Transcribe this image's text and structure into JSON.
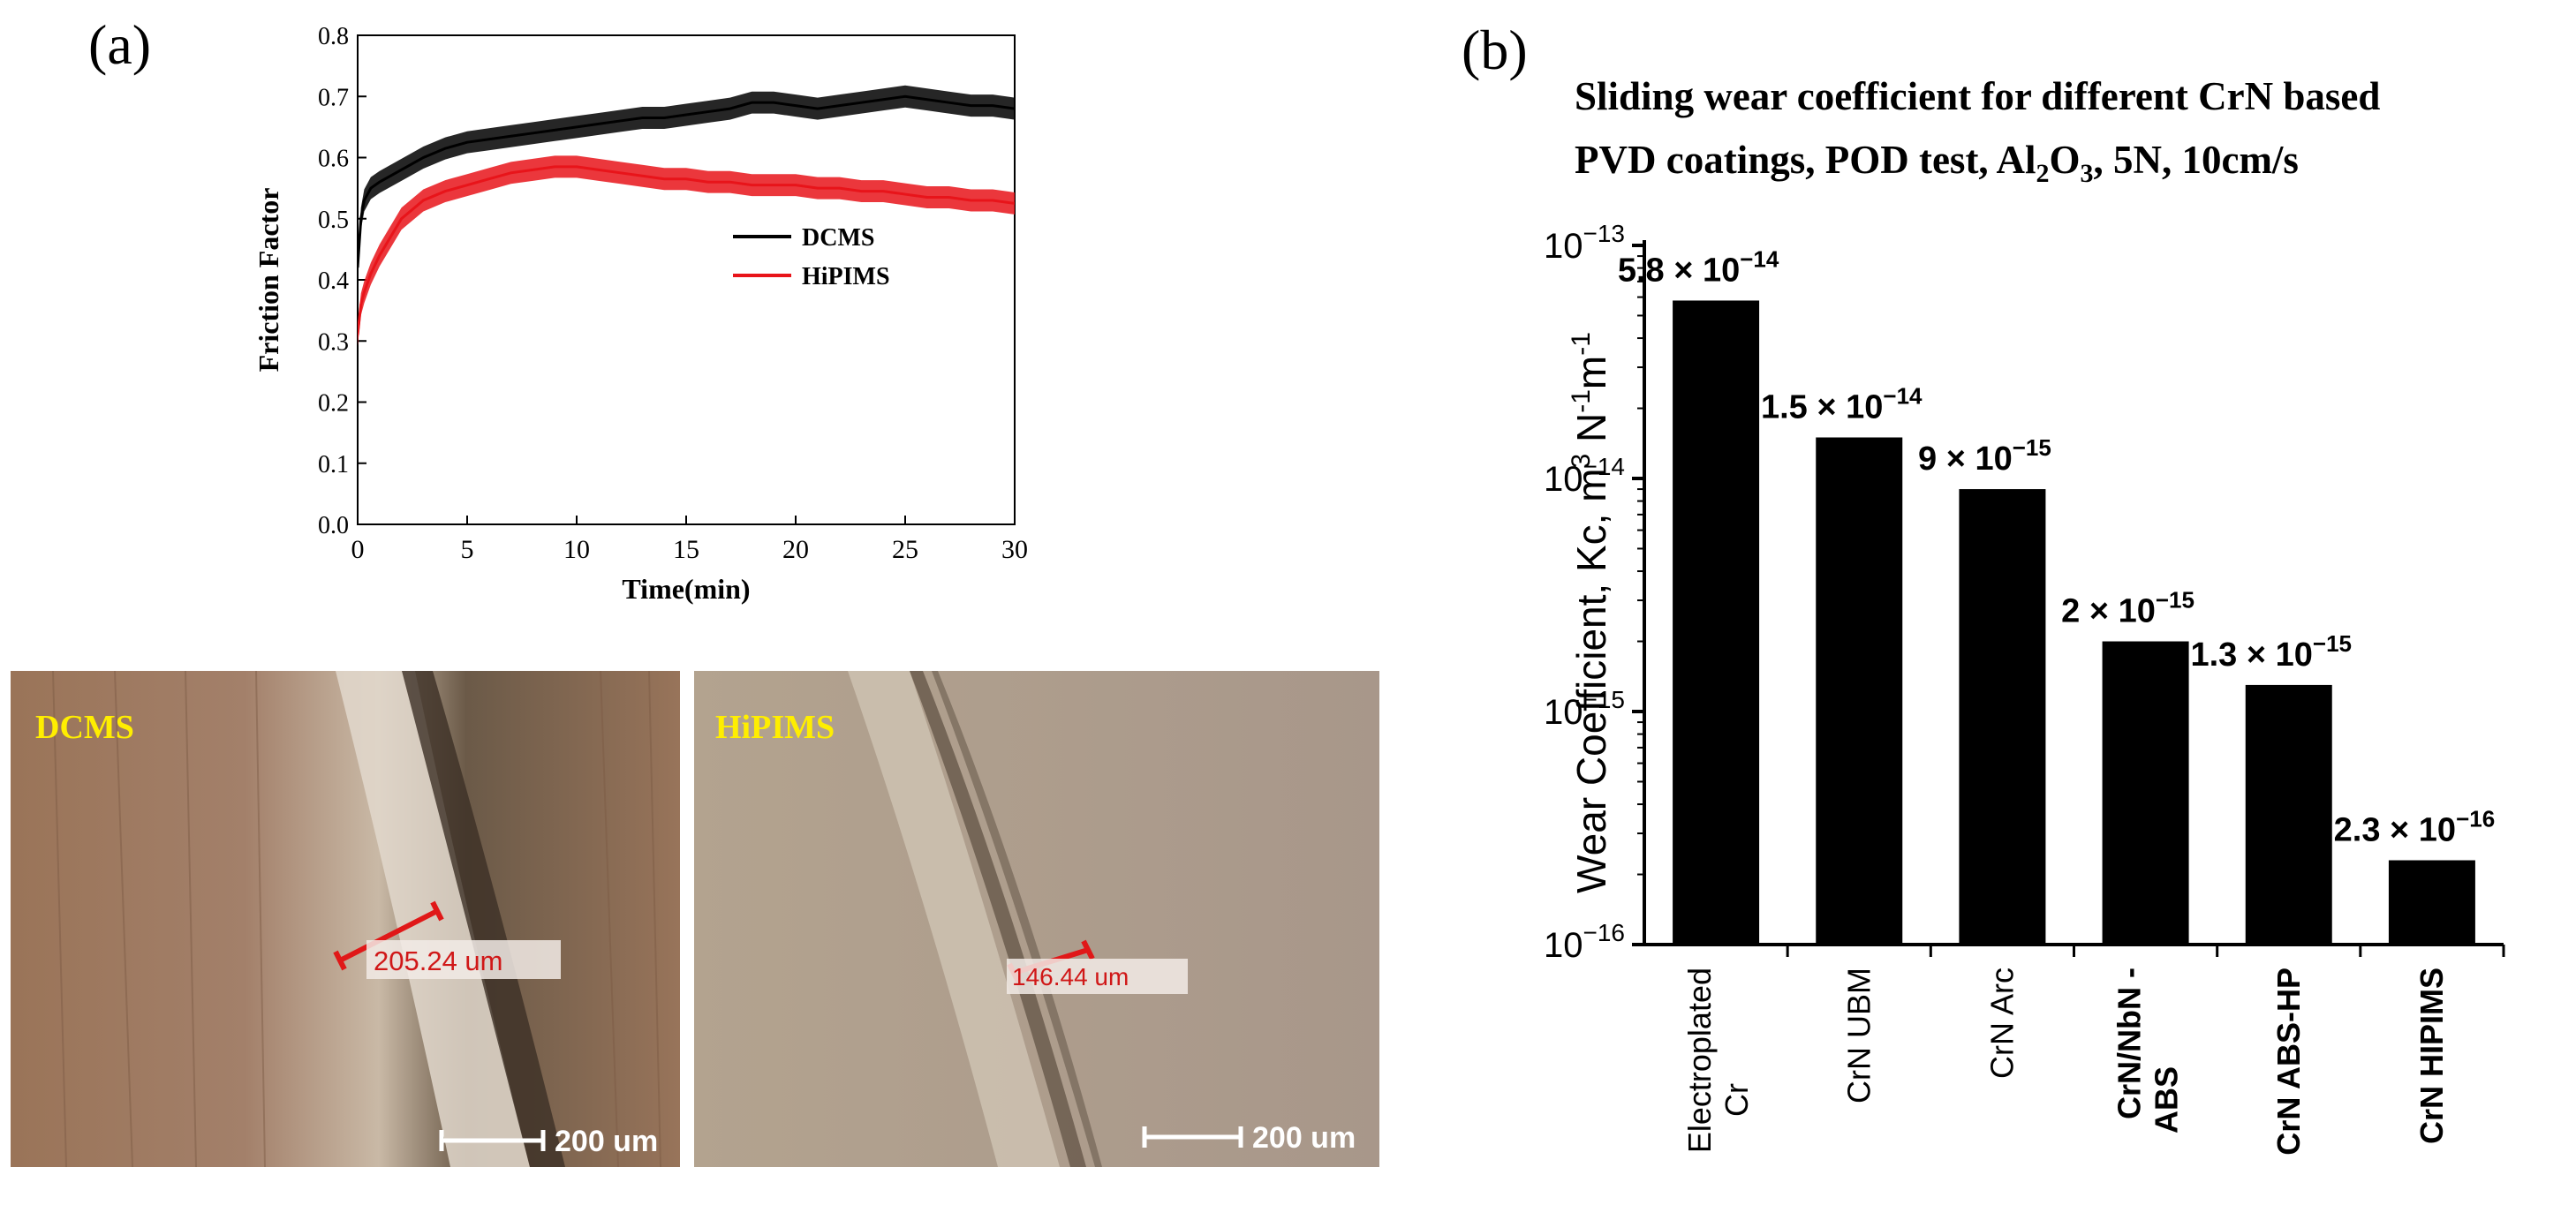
{
  "panel_a": {
    "label": "(a)",
    "chart_data": {
      "type": "line",
      "title": "",
      "xlabel": "Time(min)",
      "ylabel": "Friction Factor",
      "xlim": [
        0,
        30
      ],
      "ylim": [
        0.0,
        0.8
      ],
      "x_ticks": [
        0,
        5,
        10,
        15,
        20,
        25,
        30
      ],
      "y_ticks": [
        0.0,
        0.1,
        0.2,
        0.3,
        0.4,
        0.5,
        0.6,
        0.7,
        0.8
      ],
      "legend_position": "center-right",
      "series": [
        {
          "name": "DCMS",
          "color": "#000000",
          "x": [
            0,
            0.15,
            0.3,
            0.6,
            1,
            2,
            3,
            4,
            5,
            6,
            7,
            8,
            9,
            10,
            11,
            12,
            13,
            14,
            15,
            16,
            17,
            18,
            19,
            20,
            21,
            22,
            23,
            24,
            25,
            26,
            27,
            28,
            29,
            30
          ],
          "y": [
            0.42,
            0.5,
            0.53,
            0.55,
            0.56,
            0.58,
            0.6,
            0.615,
            0.625,
            0.63,
            0.635,
            0.64,
            0.645,
            0.65,
            0.655,
            0.66,
            0.665,
            0.665,
            0.67,
            0.675,
            0.68,
            0.69,
            0.69,
            0.685,
            0.68,
            0.685,
            0.69,
            0.695,
            0.7,
            0.695,
            0.69,
            0.685,
            0.685,
            0.68
          ]
        },
        {
          "name": "HiPIMS",
          "color": "#e8141a",
          "x": [
            0,
            0.15,
            0.3,
            0.6,
            1,
            1.5,
            2,
            3,
            4,
            5,
            6,
            7,
            8,
            9,
            10,
            11,
            12,
            13,
            14,
            15,
            16,
            17,
            18,
            19,
            20,
            21,
            22,
            23,
            24,
            25,
            26,
            27,
            28,
            29,
            30
          ],
          "y": [
            0.31,
            0.36,
            0.38,
            0.41,
            0.44,
            0.47,
            0.5,
            0.53,
            0.545,
            0.555,
            0.565,
            0.575,
            0.58,
            0.585,
            0.585,
            0.58,
            0.575,
            0.57,
            0.565,
            0.565,
            0.56,
            0.56,
            0.555,
            0.555,
            0.555,
            0.55,
            0.55,
            0.545,
            0.545,
            0.54,
            0.535,
            0.535,
            0.53,
            0.53,
            0.525
          ]
        }
      ]
    },
    "micrographs": [
      {
        "label": "DCMS",
        "measure": "205.24 um",
        "scale": "200 um"
      },
      {
        "label": "HiPIMS",
        "measure": "146.44 um",
        "scale": "200 um"
      }
    ]
  },
  "panel_b": {
    "label": "(b)",
    "title_line1": "Sliding wear coefficient for different CrN based",
    "title_line2_prefix": "PVD coatings, POD test, Al",
    "title_sub1": "2",
    "title_mid": "O",
    "title_sub2": "3",
    "title_suffix": ", 5N, 10cm/s",
    "chart_data": {
      "type": "bar",
      "title": "Sliding wear coefficient for different CrN based PVD coatings, POD test, Al2O3, 5N, 10cm/s",
      "ylabel": "Wear Coefficient, Kc, m3 N-1 m-1",
      "ylabel_main": "Wear Coefficient, Kc, m",
      "ylabel_sup1": "3",
      "ylabel_mid": " N",
      "ylabel_sup2": "-1",
      "ylabel_mid2": "m",
      "ylabel_sup3": "-1",
      "xlabel": "",
      "yscale": "log",
      "ylim": [
        1e-16,
        1e-13
      ],
      "y_ticks": [
        {
          "value": 1e-13,
          "base": "10",
          "exp": "−13"
        },
        {
          "value": 1e-14,
          "base": "10",
          "exp": "−14"
        },
        {
          "value": 1e-15,
          "base": "10",
          "exp": "−15"
        },
        {
          "value": 1e-16,
          "base": "10",
          "exp": "−16"
        }
      ],
      "categories": [
        "Electroplated Cr",
        "CrN UBM",
        "CrN Arc",
        "CrN/NbN - ABS",
        "CrN ABS-HP",
        "CrN HIPIMS"
      ],
      "category_lines": [
        [
          "Electroplated",
          "Cr"
        ],
        [
          "CrN UBM"
        ],
        [
          "CrN Arc"
        ],
        [
          "CrN/NbN -",
          "ABS"
        ],
        [
          "CrN ABS-HP"
        ],
        [
          "CrN HIPIMS"
        ]
      ],
      "category_bold": [
        false,
        false,
        false,
        true,
        true,
        true
      ],
      "values": [
        5.8e-14,
        1.5e-14,
        9e-15,
        2e-15,
        1.3e-15,
        2.3e-16
      ],
      "data_labels": [
        {
          "mant": "5.8 × 10",
          "exp": "−14"
        },
        {
          "mant": "1.5 × 10",
          "exp": "−14"
        },
        {
          "mant": "9 × 10",
          "exp": "−15"
        },
        {
          "mant": "2 × 10",
          "exp": "−15"
        },
        {
          "mant": "1.3 × 10",
          "exp": "−15"
        },
        {
          "mant": "2.3 × 10",
          "exp": "−16"
        }
      ],
      "bar_color": "#000000"
    }
  }
}
